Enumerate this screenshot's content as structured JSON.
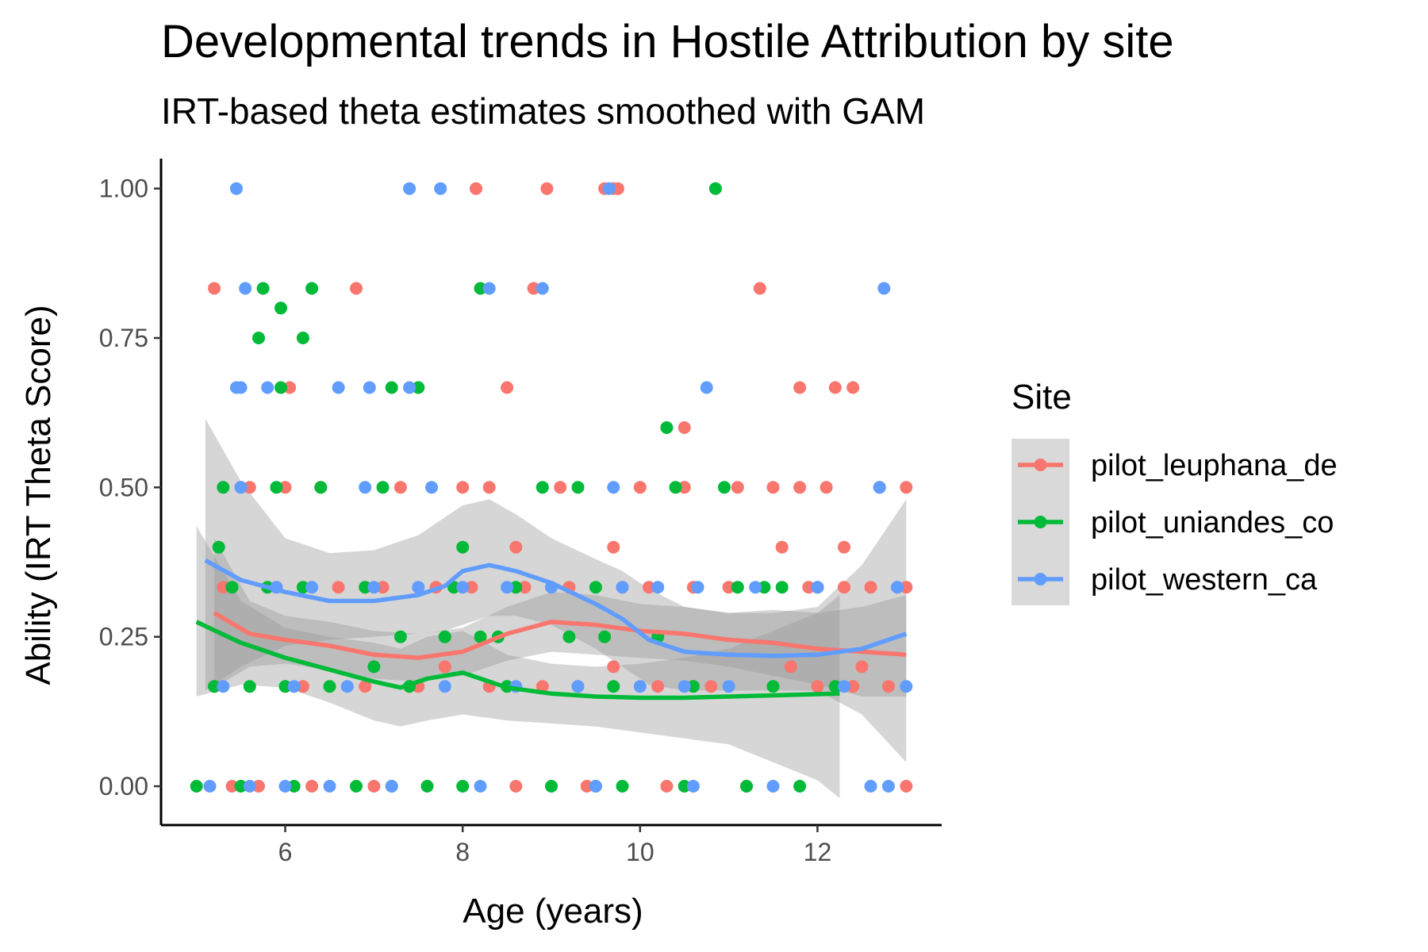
{
  "chart_data": {
    "type": "scatter",
    "title": "Developmental trends in Hostile Attribution by site",
    "subtitle": "IRT-based theta estimates smoothed with GAM",
    "xlabel": "Age (years)",
    "ylabel": "Ability (IRT Theta Score)",
    "xlim": [
      4.6,
      13.4
    ],
    "ylim": [
      -0.065,
      1.05
    ],
    "x_ticks": [
      6,
      8,
      10,
      12
    ],
    "x_tick_labels": [
      "6",
      "8",
      "10",
      "12"
    ],
    "y_ticks": [
      0,
      0.25,
      0.5,
      0.75,
      1.0
    ],
    "y_tick_labels": [
      "0.00",
      "0.25",
      "0.50",
      "0.75",
      "1.00"
    ],
    "grid": false,
    "legend": {
      "title": "Site",
      "placement": "right",
      "entries": [
        "pilot_leuphana_de",
        "pilot_uniandes_co",
        "pilot_western_ca"
      ]
    },
    "series": [
      {
        "name": "pilot_leuphana_de",
        "color": "#F8766D",
        "points": [
          [
            5.2,
            0.833
          ],
          [
            5.5,
            0.5
          ],
          [
            5.3,
            0.333
          ],
          [
            5.2,
            0.167
          ],
          [
            5.4,
            0
          ],
          [
            5.6,
            0.5
          ],
          [
            5.7,
            0
          ],
          [
            6.05,
            0.667
          ],
          [
            5.9,
            0.333
          ],
          [
            6.0,
            0.5
          ],
          [
            6.2,
            0.167
          ],
          [
            6.3,
            0
          ],
          [
            6.6,
            0.333
          ],
          [
            6.4,
            0.5
          ],
          [
            6.8,
            0.833
          ],
          [
            6.9,
            0.167
          ],
          [
            7.0,
            0
          ],
          [
            7.1,
            0.333
          ],
          [
            7.3,
            0.5
          ],
          [
            7.5,
            0.167
          ],
          [
            7.7,
            0.333
          ],
          [
            7.8,
            0.2
          ],
          [
            8.0,
            0.5
          ],
          [
            8.1,
            0.333
          ],
          [
            8.15,
            1.0
          ],
          [
            8.3,
            0.5
          ],
          [
            8.3,
            0.167
          ],
          [
            8.5,
            0.667
          ],
          [
            8.6,
            0.4
          ],
          [
            8.7,
            0.333
          ],
          [
            8.8,
            0.833
          ],
          [
            8.6,
            0
          ],
          [
            8.9,
            0.167
          ],
          [
            8.95,
            1.0
          ],
          [
            9.1,
            0.5
          ],
          [
            9.2,
            0.333
          ],
          [
            9.3,
            0.167
          ],
          [
            9.4,
            0
          ],
          [
            9.6,
            1.0
          ],
          [
            9.7,
            0.4
          ],
          [
            9.7,
            1.0
          ],
          [
            9.75,
            1.0
          ],
          [
            9.8,
            0.333
          ],
          [
            9.7,
            0.2
          ],
          [
            10.0,
            0.5
          ],
          [
            10.1,
            0.333
          ],
          [
            10.2,
            0.167
          ],
          [
            10.3,
            0
          ],
          [
            10.5,
            0.6
          ],
          [
            10.5,
            0.5
          ],
          [
            10.6,
            0.333
          ],
          [
            10.8,
            0.167
          ],
          [
            11.0,
            0.333
          ],
          [
            11.1,
            0.5
          ],
          [
            11.2,
            0
          ],
          [
            11.35,
            0.833
          ],
          [
            11.5,
            0.5
          ],
          [
            11.6,
            0.4
          ],
          [
            11.7,
            0.2
          ],
          [
            11.8,
            0.667
          ],
          [
            11.8,
            0.5
          ],
          [
            11.9,
            0.333
          ],
          [
            12.0,
            0.167
          ],
          [
            12.1,
            0.5
          ],
          [
            12.2,
            0.667
          ],
          [
            12.3,
            0.4
          ],
          [
            12.3,
            0.333
          ],
          [
            12.4,
            0.667
          ],
          [
            12.4,
            0.167
          ],
          [
            12.5,
            0.2
          ],
          [
            12.6,
            0.333
          ],
          [
            12.7,
            0.5
          ],
          [
            12.8,
            0.167
          ],
          [
            12.9,
            0.333
          ],
          [
            13.0,
            0.5
          ],
          [
            13.0,
            0.333
          ],
          [
            13.0,
            0
          ]
        ],
        "smooth": [
          [
            5.2,
            0.29
          ],
          [
            5.6,
            0.255
          ],
          [
            6.0,
            0.245
          ],
          [
            6.5,
            0.235
          ],
          [
            7.0,
            0.22
          ],
          [
            7.5,
            0.215
          ],
          [
            8.0,
            0.225
          ],
          [
            8.5,
            0.255
          ],
          [
            9.0,
            0.275
          ],
          [
            9.5,
            0.27
          ],
          [
            10.0,
            0.26
          ],
          [
            10.5,
            0.255
          ],
          [
            11.0,
            0.245
          ],
          [
            11.5,
            0.24
          ],
          [
            12.0,
            0.23
          ],
          [
            12.5,
            0.225
          ],
          [
            13.0,
            0.22
          ]
        ]
      },
      {
        "name": "pilot_uniandes_co",
        "color": "#00BA38",
        "points": [
          [
            5.0,
            0
          ],
          [
            5.2,
            0.167
          ],
          [
            5.25,
            0.4
          ],
          [
            5.3,
            0.5
          ],
          [
            5.4,
            0.333
          ],
          [
            5.5,
            0
          ],
          [
            5.6,
            0.167
          ],
          [
            5.7,
            0.75
          ],
          [
            5.75,
            0.833
          ],
          [
            5.8,
            0.333
          ],
          [
            5.9,
            0.5
          ],
          [
            5.95,
            0.8
          ],
          [
            5.95,
            0.667
          ],
          [
            6.0,
            0.167
          ],
          [
            6.1,
            0
          ],
          [
            6.2,
            0.333
          ],
          [
            6.2,
            0.75
          ],
          [
            6.3,
            0.833
          ],
          [
            6.4,
            0.5
          ],
          [
            6.5,
            0.167
          ],
          [
            6.8,
            0
          ],
          [
            6.9,
            0.333
          ],
          [
            7.0,
            0.2
          ],
          [
            7.1,
            0.5
          ],
          [
            7.2,
            0
          ],
          [
            7.2,
            0.667
          ],
          [
            7.3,
            0.25
          ],
          [
            7.4,
            0.167
          ],
          [
            7.5,
            0.667
          ],
          [
            7.6,
            0
          ],
          [
            7.8,
            0.25
          ],
          [
            7.9,
            0.333
          ],
          [
            8.0,
            0.4
          ],
          [
            8.0,
            0
          ],
          [
            8.2,
            0.833
          ],
          [
            8.2,
            0.25
          ],
          [
            8.4,
            0.25
          ],
          [
            8.5,
            0.167
          ],
          [
            8.6,
            0.333
          ],
          [
            8.9,
            0.5
          ],
          [
            9.0,
            0
          ],
          [
            9.2,
            0.25
          ],
          [
            9.3,
            0.5
          ],
          [
            9.5,
            0.333
          ],
          [
            9.5,
            0
          ],
          [
            9.6,
            0.25
          ],
          [
            9.7,
            0.167
          ],
          [
            9.8,
            0
          ],
          [
            10.2,
            0.25
          ],
          [
            10.3,
            0.6
          ],
          [
            10.4,
            0.5
          ],
          [
            10.5,
            0
          ],
          [
            10.6,
            0.167
          ],
          [
            10.85,
            1.0
          ],
          [
            10.95,
            0.5
          ],
          [
            11.1,
            0.333
          ],
          [
            11.2,
            0
          ],
          [
            11.4,
            0.333
          ],
          [
            11.5,
            0.167
          ],
          [
            11.6,
            0.333
          ],
          [
            11.8,
            0
          ],
          [
            12.0,
            0.333
          ],
          [
            12.2,
            0.167
          ]
        ],
        "smooth": [
          [
            5.0,
            0.275
          ],
          [
            5.5,
            0.24
          ],
          [
            6.0,
            0.215
          ],
          [
            6.5,
            0.195
          ],
          [
            7.0,
            0.175
          ],
          [
            7.3,
            0.165
          ],
          [
            7.6,
            0.18
          ],
          [
            8.0,
            0.19
          ],
          [
            8.5,
            0.165
          ],
          [
            9.0,
            0.155
          ],
          [
            9.5,
            0.15
          ],
          [
            10.0,
            0.148
          ],
          [
            10.5,
            0.148
          ],
          [
            11.0,
            0.15
          ],
          [
            11.5,
            0.152
          ],
          [
            12.0,
            0.154
          ],
          [
            12.25,
            0.155
          ]
        ]
      },
      {
        "name": "pilot_western_ca",
        "color": "#619CFF",
        "points": [
          [
            5.15,
            0
          ],
          [
            5.3,
            0.167
          ],
          [
            5.45,
            1.0
          ],
          [
            5.45,
            0.667
          ],
          [
            5.5,
            0.5
          ],
          [
            5.55,
            0.833
          ],
          [
            5.5,
            0.667
          ],
          [
            5.6,
            0
          ],
          [
            5.8,
            0.667
          ],
          [
            5.9,
            0.333
          ],
          [
            6.0,
            0
          ],
          [
            6.1,
            0.167
          ],
          [
            6.3,
            0.333
          ],
          [
            6.5,
            0
          ],
          [
            6.6,
            0.667
          ],
          [
            6.7,
            0.167
          ],
          [
            6.9,
            0.5
          ],
          [
            6.95,
            0.667
          ],
          [
            7.0,
            0.333
          ],
          [
            7.2,
            0
          ],
          [
            7.4,
            1.0
          ],
          [
            7.4,
            0.667
          ],
          [
            7.5,
            0.333
          ],
          [
            7.65,
            0.5
          ],
          [
            7.75,
            1.0
          ],
          [
            7.8,
            0.167
          ],
          [
            8.0,
            0.333
          ],
          [
            8.2,
            0
          ],
          [
            8.3,
            0.833
          ],
          [
            8.5,
            0.333
          ],
          [
            8.6,
            0.167
          ],
          [
            8.9,
            0.833
          ],
          [
            9.0,
            0.333
          ],
          [
            9.3,
            0.167
          ],
          [
            9.5,
            0
          ],
          [
            9.65,
            1.0
          ],
          [
            9.7,
            0.5
          ],
          [
            9.8,
            0.333
          ],
          [
            10.0,
            0.167
          ],
          [
            10.2,
            0.333
          ],
          [
            10.5,
            0.167
          ],
          [
            10.6,
            0
          ],
          [
            10.65,
            0.333
          ],
          [
            10.75,
            0.667
          ],
          [
            11.0,
            0.167
          ],
          [
            11.3,
            0.333
          ],
          [
            11.5,
            0
          ],
          [
            12.0,
            0.333
          ],
          [
            12.3,
            0.167
          ],
          [
            12.6,
            0
          ],
          [
            12.7,
            0.5
          ],
          [
            12.75,
            0.833
          ],
          [
            12.8,
            0
          ],
          [
            12.9,
            0.333
          ],
          [
            13.0,
            0.167
          ]
        ],
        "smooth": [
          [
            5.1,
            0.378
          ],
          [
            5.5,
            0.345
          ],
          [
            6.0,
            0.325
          ],
          [
            6.5,
            0.31
          ],
          [
            7.0,
            0.31
          ],
          [
            7.5,
            0.32
          ],
          [
            7.8,
            0.335
          ],
          [
            8.0,
            0.36
          ],
          [
            8.3,
            0.37
          ],
          [
            8.6,
            0.36
          ],
          [
            9.0,
            0.34
          ],
          [
            9.5,
            0.305
          ],
          [
            9.8,
            0.28
          ],
          [
            10.1,
            0.245
          ],
          [
            10.5,
            0.225
          ],
          [
            11.0,
            0.22
          ],
          [
            11.5,
            0.218
          ],
          [
            12.0,
            0.22
          ],
          [
            12.5,
            0.23
          ],
          [
            13.0,
            0.255
          ]
        ]
      }
    ],
    "confidence_bands": [
      {
        "name": "pilot_leuphana_de",
        "x": [
          5.2,
          5.6,
          6.0,
          6.5,
          7.0,
          7.5,
          8.0,
          8.5,
          9.0,
          9.5,
          10.0,
          10.5,
          11.0,
          11.5,
          12.0,
          12.5,
          13.0
        ],
        "lower": [
          0.165,
          0.2,
          0.205,
          0.195,
          0.18,
          0.175,
          0.185,
          0.21,
          0.225,
          0.22,
          0.215,
          0.21,
          0.2,
          0.185,
          0.17,
          0.15,
          0.15
        ],
        "upper": [
          0.415,
          0.31,
          0.285,
          0.275,
          0.26,
          0.255,
          0.265,
          0.3,
          0.325,
          0.32,
          0.305,
          0.3,
          0.29,
          0.295,
          0.29,
          0.3,
          0.32
        ]
      },
      {
        "name": "pilot_uniandes_co",
        "x": [
          5.0,
          5.5,
          6.0,
          6.5,
          7.0,
          7.3,
          7.6,
          8.0,
          8.5,
          9.0,
          9.5,
          10.0,
          10.5,
          11.0,
          11.5,
          12.0,
          12.25
        ],
        "lower": [
          0.15,
          0.17,
          0.165,
          0.14,
          0.11,
          0.1,
          0.11,
          0.12,
          0.11,
          0.105,
          0.1,
          0.09,
          0.08,
          0.07,
          0.04,
          0.01,
          -0.02
        ],
        "upper": [
          0.435,
          0.31,
          0.265,
          0.25,
          0.24,
          0.23,
          0.25,
          0.26,
          0.22,
          0.205,
          0.2,
          0.205,
          0.215,
          0.23,
          0.26,
          0.29,
          0.32
        ]
      },
      {
        "name": "pilot_western_ca",
        "x": [
          5.1,
          5.5,
          6.0,
          6.5,
          7.0,
          7.5,
          7.8,
          8.0,
          8.3,
          8.6,
          9.0,
          9.5,
          9.8,
          10.1,
          10.5,
          11.0,
          11.5,
          12.0,
          12.5,
          13.0
        ],
        "lower": [
          0.16,
          0.2,
          0.235,
          0.245,
          0.25,
          0.255,
          0.26,
          0.27,
          0.285,
          0.285,
          0.27,
          0.23,
          0.2,
          0.17,
          0.16,
          0.16,
          0.16,
          0.16,
          0.12,
          0.04
        ],
        "upper": [
          0.615,
          0.51,
          0.415,
          0.39,
          0.395,
          0.42,
          0.45,
          0.47,
          0.48,
          0.455,
          0.415,
          0.38,
          0.36,
          0.33,
          0.3,
          0.29,
          0.29,
          0.3,
          0.37,
          0.48
        ]
      }
    ]
  }
}
